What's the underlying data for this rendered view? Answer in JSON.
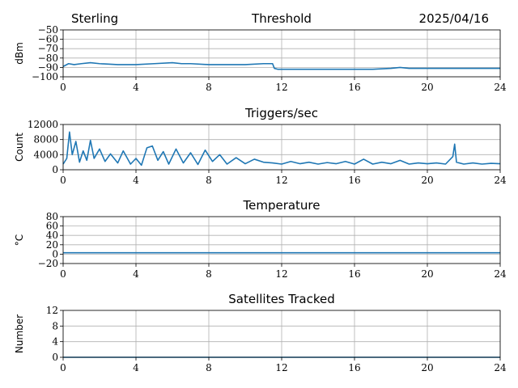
{
  "header": {
    "site": "Sterling",
    "date": "2025/04/16"
  },
  "colors": {
    "series": "#1f77b4",
    "grid": "#b0b0b0"
  },
  "chart_data": [
    {
      "type": "line",
      "title": "Threshold",
      "ylabel": "dBm",
      "xlim": [
        0,
        24
      ],
      "ylim": [
        -100,
        -50
      ],
      "xticks": [
        0,
        4,
        8,
        12,
        16,
        20,
        24
      ],
      "yticks": [
        -100,
        -90,
        -80,
        -70,
        -60,
        -50
      ],
      "grid": true,
      "series": [
        {
          "x": [
            0,
            0.3,
            0.6,
            1,
            1.5,
            2,
            3,
            4,
            5,
            6,
            6.5,
            7,
            8,
            9,
            10,
            11,
            11.5,
            11.6,
            11.8,
            12,
            13,
            14,
            15,
            16,
            17,
            18,
            18.5,
            19,
            20,
            21,
            22,
            23,
            24
          ],
          "y": [
            -89,
            -86,
            -87,
            -86,
            -85,
            -86,
            -87,
            -87,
            -86,
            -85,
            -86,
            -86,
            -87,
            -87,
            -87,
            -86,
            -86,
            -91,
            -92,
            -92,
            -92,
            -92,
            -92,
            -92,
            -92,
            -91,
            -90,
            -91,
            -91,
            -91,
            -91,
            -91,
            -91
          ]
        }
      ]
    },
    {
      "type": "line",
      "title": "Triggers/sec",
      "ylabel": "Count",
      "xlim": [
        0,
        24
      ],
      "ylim": [
        0,
        12000
      ],
      "xticks": [
        0,
        4,
        8,
        12,
        16,
        20,
        24
      ],
      "yticks": [
        0,
        4000,
        8000,
        12000
      ],
      "grid": true,
      "series": [
        {
          "x": [
            0,
            0.2,
            0.35,
            0.5,
            0.7,
            0.9,
            1.1,
            1.3,
            1.5,
            1.7,
            2,
            2.3,
            2.6,
            3,
            3.3,
            3.7,
            4,
            4.3,
            4.6,
            4.9,
            5.2,
            5.5,
            5.8,
            6.2,
            6.6,
            7,
            7.4,
            7.8,
            8.2,
            8.6,
            9,
            9.5,
            10,
            10.5,
            11,
            11.5,
            12,
            12.5,
            13,
            13.5,
            14,
            14.5,
            15,
            15.5,
            16,
            16.5,
            17,
            17.5,
            18,
            18.5,
            19,
            19.5,
            20,
            20.5,
            21,
            21.4,
            21.5,
            21.6,
            22,
            22.5,
            23,
            23.5,
            24
          ],
          "y": [
            1500,
            3000,
            10000,
            4000,
            7500,
            2000,
            5000,
            2500,
            7800,
            3000,
            5500,
            2200,
            4200,
            1800,
            5000,
            1500,
            3000,
            1200,
            5800,
            6300,
            2500,
            4800,
            1500,
            5500,
            1800,
            4500,
            1400,
            5200,
            2200,
            4000,
            1500,
            3200,
            1600,
            2800,
            2000,
            1800,
            1500,
            2200,
            1600,
            2000,
            1500,
            1900,
            1600,
            2200,
            1500,
            2800,
            1500,
            2000,
            1600,
            2500,
            1500,
            1800,
            1600,
            1800,
            1500,
            3500,
            6800,
            2000,
            1500,
            1800,
            1500,
            1700,
            1600
          ]
        }
      ]
    },
    {
      "type": "line",
      "title": "Temperature",
      "ylabel": "°C",
      "xlim": [
        0,
        24
      ],
      "ylim": [
        -20,
        80
      ],
      "xticks": [
        0,
        4,
        8,
        12,
        16,
        20,
        24
      ],
      "yticks": [
        -20,
        0,
        20,
        40,
        60,
        80
      ],
      "grid": true,
      "series": [
        {
          "x": [
            0,
            24
          ],
          "y": [
            3,
            3
          ]
        }
      ]
    },
    {
      "type": "line",
      "title": "Satellites Tracked",
      "ylabel": "Number",
      "xlim": [
        0,
        24
      ],
      "ylim": [
        0,
        12
      ],
      "xticks": [
        0,
        4,
        8,
        12,
        16,
        20,
        24
      ],
      "yticks": [
        0,
        4,
        8,
        12
      ],
      "grid": true,
      "series": [
        {
          "x": [
            0,
            24
          ],
          "y": [
            0,
            0
          ]
        }
      ]
    }
  ]
}
